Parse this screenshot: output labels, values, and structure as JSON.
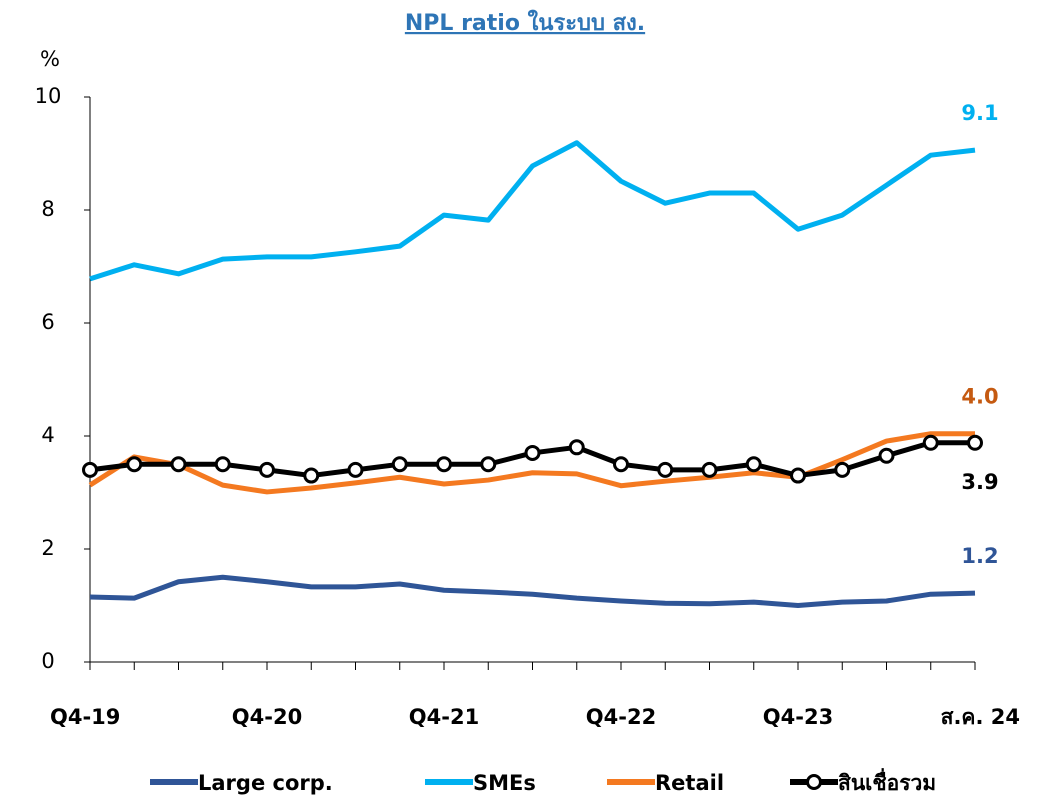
{
  "chart_data": {
    "type": "line",
    "title": "NPL ratio ในระบบ สง.",
    "y_label": "%",
    "categories": [
      "Q4-19",
      null,
      null,
      null,
      "Q4-20",
      null,
      null,
      null,
      "Q4-21",
      null,
      null,
      null,
      "Q4-22",
      null,
      null,
      null,
      "Q4-23",
      null,
      null,
      null,
      "ส.ค. 24"
    ],
    "ylim": [
      0,
      10
    ],
    "yticks": [
      0,
      2,
      4,
      6,
      8,
      10
    ],
    "series": [
      {
        "name": "Large corp.",
        "color": "#2f5597",
        "label_color": "#2f5597",
        "markers": false,
        "values": [
          1.15,
          1.13,
          1.42,
          1.5,
          1.42,
          1.33,
          1.33,
          1.38,
          1.27,
          1.24,
          1.2,
          1.13,
          1.08,
          1.04,
          1.03,
          1.06,
          1.0,
          1.06,
          1.08,
          1.2,
          1.22
        ],
        "value_labels": [
          null,
          null,
          null,
          null,
          null,
          null,
          null,
          null,
          null,
          null,
          null,
          null,
          null,
          null,
          null,
          null,
          null,
          null,
          null,
          null,
          "1.2"
        ]
      },
      {
        "name": "SMEs",
        "color": "#00b0f0",
        "label_color": "#00b0f0",
        "markers": false,
        "values": [
          6.78,
          7.03,
          6.87,
          7.13,
          7.17,
          7.17,
          7.26,
          7.36,
          7.91,
          7.82,
          8.78,
          9.19,
          8.51,
          8.12,
          8.3,
          8.3,
          7.66,
          7.91,
          8.44,
          8.97,
          9.06
        ],
        "value_labels": [
          null,
          null,
          null,
          null,
          null,
          null,
          null,
          null,
          null,
          null,
          null,
          null,
          null,
          null,
          null,
          null,
          null,
          null,
          null,
          null,
          "9.1"
        ]
      },
      {
        "name": "Retail",
        "color": "#f47920",
        "label_color": "#c55a11",
        "markers": false,
        "values": [
          3.13,
          3.63,
          3.49,
          3.13,
          3.01,
          3.08,
          3.17,
          3.27,
          3.15,
          3.22,
          3.35,
          3.33,
          3.12,
          3.2,
          3.27,
          3.35,
          3.27,
          3.58,
          3.91,
          4.04,
          4.04
        ],
        "value_labels": [
          null,
          null,
          null,
          null,
          null,
          null,
          null,
          null,
          null,
          null,
          null,
          null,
          null,
          null,
          null,
          null,
          null,
          null,
          null,
          null,
          "4.0"
        ]
      },
      {
        "name": "สินเชื่อรวม",
        "color": "#000000",
        "label_color": "#000000",
        "markers": true,
        "values": [
          3.4,
          3.5,
          3.5,
          3.5,
          3.4,
          3.3,
          3.4,
          3.5,
          3.5,
          3.5,
          3.7,
          3.8,
          3.5,
          3.4,
          3.4,
          3.5,
          3.3,
          3.4,
          3.65,
          3.88,
          3.88
        ],
        "value_labels": [
          null,
          null,
          null,
          null,
          null,
          null,
          null,
          null,
          null,
          null,
          null,
          null,
          null,
          null,
          null,
          null,
          null,
          null,
          null,
          null,
          "3.9"
        ]
      }
    ]
  }
}
